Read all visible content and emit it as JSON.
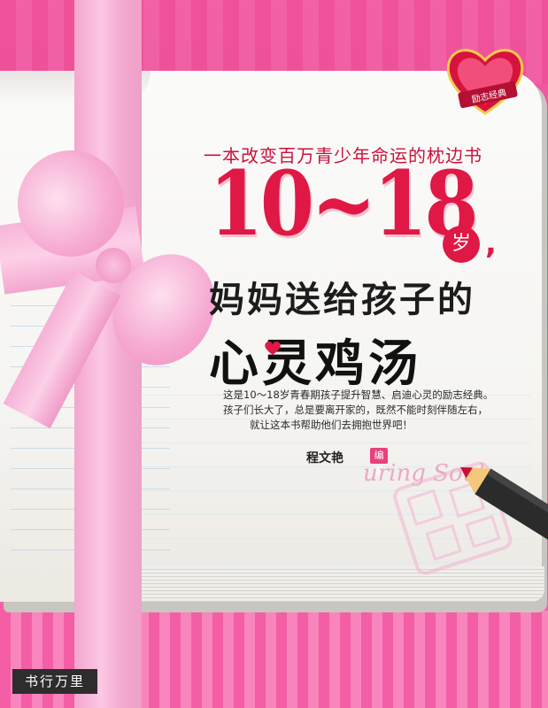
{
  "cover": {
    "subtitle": "一本改变百万青少年命运的枕边书",
    "age_range": "10~18",
    "age_unit": "岁",
    "comma": ",",
    "title_line2": "妈妈送给孩子的",
    "title_line3": "心灵鸡汤",
    "description": [
      "这是10～18岁青春期孩子提升智慧、启迪心灵的励志经典。",
      "孩子们长大了，总是要离开家的，既然不能时刻伴随左右，",
      "就让这本书帮助他们去拥抱世界吧！"
    ],
    "author": "程文艳",
    "author_role": "编著",
    "decor_script": "uring Soul",
    "badge_text": "励志经典",
    "watermark": "书行万里"
  },
  "colors": {
    "pink_background": "#ee4f98",
    "title_red": "#e01845",
    "ribbon_pink": "#f6b5d8"
  }
}
